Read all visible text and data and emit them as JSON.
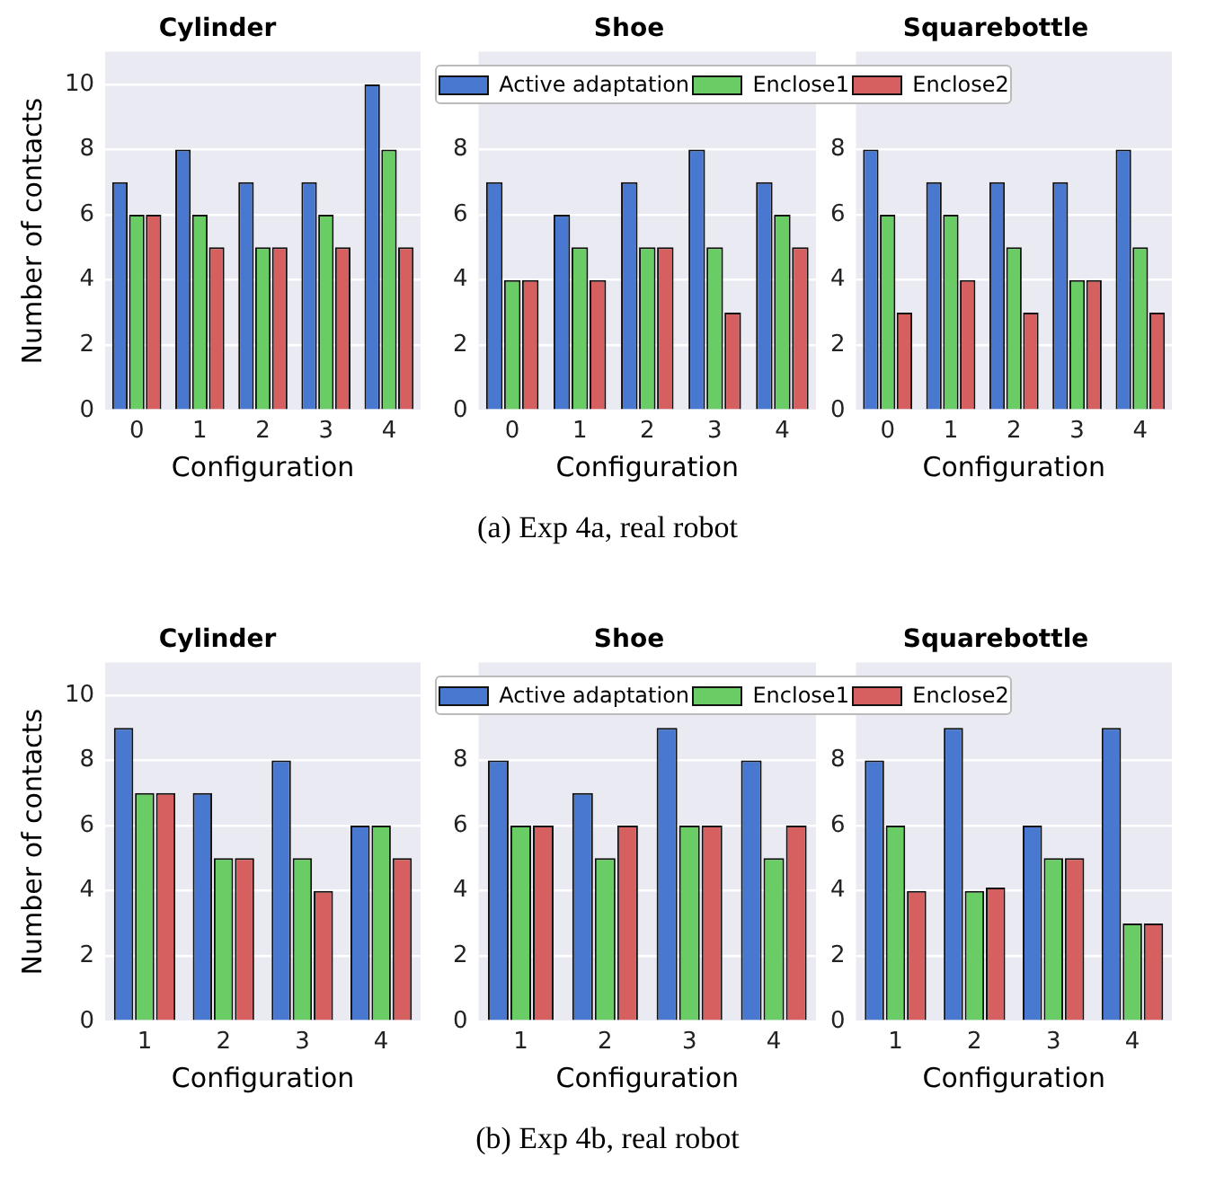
{
  "chart_data": [
    {
      "type": "bar",
      "title": "Cylinder",
      "xlabel": "Configuration",
      "ylabel": "Number of contacts",
      "categories": [
        "0",
        "1",
        "2",
        "3",
        "4"
      ],
      "ylim": [
        0,
        11
      ],
      "yticks": [
        0,
        2,
        4,
        6,
        8,
        10
      ],
      "grid": "y",
      "annotations": [
        "(a) Exp 4a, real robot"
      ],
      "series": [
        {
          "color": "#4878d0",
          "values": [
            7,
            8,
            7,
            7,
            10
          ]
        },
        {
          "color": "#6acc64",
          "values": [
            6,
            6,
            5,
            6,
            8
          ]
        },
        {
          "color": "#d65f5f",
          "values": [
            6,
            5,
            5,
            5,
            5
          ]
        }
      ]
    },
    {
      "type": "bar",
      "title": "Shoe",
      "xlabel": "Configuration",
      "categories": [
        "0",
        "1",
        "2",
        "3",
        "4"
      ],
      "ylim": [
        0,
        11
      ],
      "yticks": [
        0,
        2,
        4,
        6,
        8
      ],
      "grid": "y",
      "legend": "top right",
      "series": [
        {
          "name": "Active adaptation",
          "color": "#4878d0",
          "values": [
            7,
            6,
            7,
            8,
            7
          ]
        },
        {
          "name": "Enclose1",
          "color": "#6acc64",
          "values": [
            4,
            5,
            5,
            5,
            6
          ]
        },
        {
          "name": "Enclose2",
          "color": "#d65f5f",
          "values": [
            4,
            4,
            5,
            3,
            5
          ]
        }
      ]
    },
    {
      "type": "bar",
      "title": "Squarebottle",
      "xlabel": "Configuration",
      "categories": [
        "0",
        "1",
        "2",
        "3",
        "4"
      ],
      "ylim": [
        0,
        11
      ],
      "yticks": [
        0,
        2,
        4,
        6,
        8
      ],
      "grid": "y",
      "series": [
        {
          "color": "#4878d0",
          "values": [
            8,
            7,
            7,
            7,
            8
          ]
        },
        {
          "color": "#6acc64",
          "values": [
            6,
            6,
            5,
            4,
            5
          ]
        },
        {
          "color": "#d65f5f",
          "values": [
            3,
            4,
            3,
            4,
            3
          ]
        }
      ]
    },
    {
      "type": "bar",
      "title": "Cylinder",
      "xlabel": "Configuration",
      "ylabel": "Number of contacts",
      "categories": [
        "1",
        "2",
        "3",
        "4"
      ],
      "ylim": [
        0,
        11
      ],
      "yticks": [
        0,
        2,
        4,
        6,
        8,
        10
      ],
      "grid": "y",
      "annotations": [
        "(b) Exp 4b, real robot"
      ],
      "series": [
        {
          "color": "#4878d0",
          "values": [
            9,
            7,
            8,
            6
          ]
        },
        {
          "color": "#6acc64",
          "values": [
            7,
            5,
            5,
            6
          ]
        },
        {
          "color": "#d65f5f",
          "values": [
            7,
            5,
            4,
            5
          ]
        }
      ]
    },
    {
      "type": "bar",
      "title": "Shoe",
      "xlabel": "Configuration",
      "categories": [
        "1",
        "2",
        "3",
        "4"
      ],
      "ylim": [
        0,
        11
      ],
      "yticks": [
        0,
        2,
        4,
        6,
        8
      ],
      "grid": "y",
      "legend": "top right",
      "series": [
        {
          "name": "Active adaptation",
          "color": "#4878d0",
          "values": [
            8,
            7,
            9,
            8
          ]
        },
        {
          "name": "Enclose1",
          "color": "#6acc64",
          "values": [
            6,
            5,
            6,
            5
          ]
        },
        {
          "name": "Enclose2",
          "color": "#d65f5f",
          "values": [
            6,
            6,
            6,
            6
          ]
        }
      ]
    },
    {
      "type": "bar",
      "title": "Squarebottle",
      "xlabel": "Configuration",
      "categories": [
        "1",
        "2",
        "3",
        "4"
      ],
      "ylim": [
        0,
        11
      ],
      "yticks": [
        0,
        2,
        4,
        6,
        8
      ],
      "grid": "y",
      "series": [
        {
          "color": "#4878d0",
          "values": [
            8,
            9,
            6,
            9
          ]
        },
        {
          "color": "#6acc64",
          "values": [
            6,
            4,
            5,
            3
          ]
        },
        {
          "color": "#d65f5f",
          "values": [
            4,
            4.1,
            5,
            3
          ]
        }
      ]
    }
  ]
}
